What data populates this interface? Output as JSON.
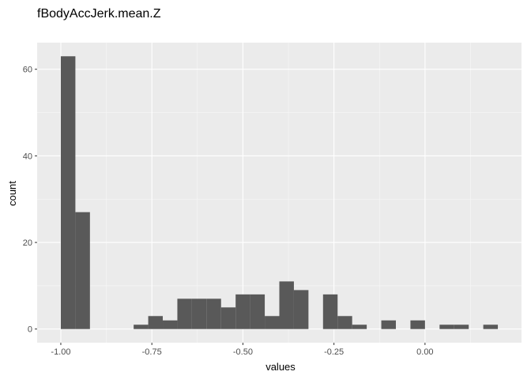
{
  "chart_data": {
    "type": "bar",
    "title": "fBodyAccJerk.mean.Z",
    "xlabel": "values",
    "ylabel": "count",
    "bin_width": 0.04,
    "bins": [
      {
        "x0": -1.0,
        "x1": -0.96,
        "count": 63
      },
      {
        "x0": -0.96,
        "x1": -0.92,
        "count": 27
      },
      {
        "x0": -0.92,
        "x1": -0.88,
        "count": 0
      },
      {
        "x0": -0.88,
        "x1": -0.84,
        "count": 0
      },
      {
        "x0": -0.84,
        "x1": -0.8,
        "count": 0
      },
      {
        "x0": -0.8,
        "x1": -0.76,
        "count": 1
      },
      {
        "x0": -0.76,
        "x1": -0.72,
        "count": 3
      },
      {
        "x0": -0.72,
        "x1": -0.68,
        "count": 2
      },
      {
        "x0": -0.68,
        "x1": -0.64,
        "count": 7
      },
      {
        "x0": -0.64,
        "x1": -0.6,
        "count": 7
      },
      {
        "x0": -0.6,
        "x1": -0.56,
        "count": 7
      },
      {
        "x0": -0.56,
        "x1": -0.52,
        "count": 5
      },
      {
        "x0": -0.52,
        "x1": -0.48,
        "count": 8
      },
      {
        "x0": -0.48,
        "x1": -0.44,
        "count": 8
      },
      {
        "x0": -0.44,
        "x1": -0.4,
        "count": 3
      },
      {
        "x0": -0.4,
        "x1": -0.36,
        "count": 11
      },
      {
        "x0": -0.36,
        "x1": -0.32,
        "count": 9
      },
      {
        "x0": -0.32,
        "x1": -0.28,
        "count": 0
      },
      {
        "x0": -0.28,
        "x1": -0.24,
        "count": 8
      },
      {
        "x0": -0.24,
        "x1": -0.2,
        "count": 3
      },
      {
        "x0": -0.2,
        "x1": -0.16,
        "count": 1
      },
      {
        "x0": -0.16,
        "x1": -0.12,
        "count": 0
      },
      {
        "x0": -0.12,
        "x1": -0.08,
        "count": 2
      },
      {
        "x0": -0.08,
        "x1": -0.04,
        "count": 0
      },
      {
        "x0": -0.04,
        "x1": 0.0,
        "count": 2
      },
      {
        "x0": 0.0,
        "x1": 0.04,
        "count": 0
      },
      {
        "x0": 0.04,
        "x1": 0.08,
        "count": 1
      },
      {
        "x0": 0.08,
        "x1": 0.12,
        "count": 1
      },
      {
        "x0": 0.12,
        "x1": 0.16,
        "count": 0
      },
      {
        "x0": 0.16,
        "x1": 0.2,
        "count": 1
      }
    ],
    "x_ticks": [
      -1.0,
      -0.75,
      -0.5,
      -0.25,
      0.0
    ],
    "x_tick_labels": [
      "-1.00",
      "-0.75",
      "-0.50",
      "-0.25",
      "0.00"
    ],
    "y_ticks": [
      0,
      20,
      40,
      60
    ],
    "y_tick_labels": [
      "0",
      "20",
      "40",
      "60"
    ],
    "xlim": [
      -1.065,
      0.265
    ],
    "ylim": [
      -3.15,
      66.15
    ],
    "grid": true,
    "legend": "none",
    "colors": {
      "panel_background": "#ebebeb",
      "grid_major": "#ffffff",
      "grid_minor": "#f7f7f7",
      "bar_fill": "#595959",
      "tick_mark": "#333333"
    }
  }
}
